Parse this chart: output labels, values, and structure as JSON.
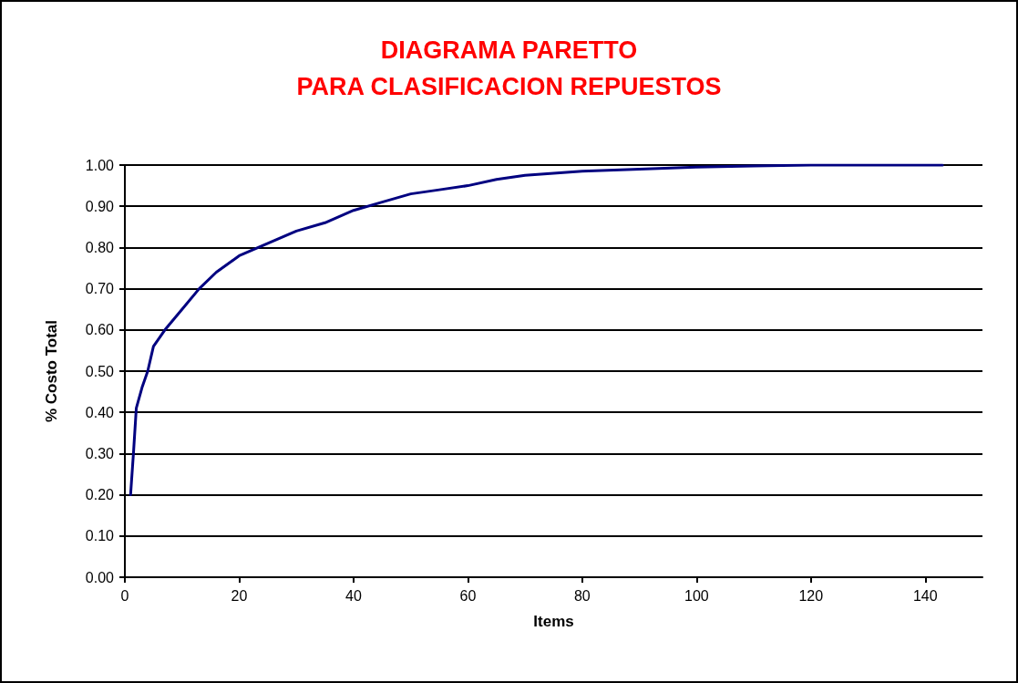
{
  "chart_data": {
    "type": "line",
    "title": "DIAGRAMA PARETTO\nPARA CLASIFICACION REPUESTOS",
    "xlabel": "Items",
    "ylabel": "% Costo Total",
    "x": [
      1,
      1.5,
      2,
      3,
      4,
      5,
      7,
      10,
      13,
      16,
      20,
      25,
      30,
      35,
      40,
      45,
      50,
      55,
      60,
      65,
      70,
      80,
      90,
      100,
      110,
      120,
      143
    ],
    "series": [
      {
        "color": "#000080",
        "values": [
          0.2,
          0.3,
          0.41,
          0.46,
          0.5,
          0.56,
          0.6,
          0.65,
          0.7,
          0.74,
          0.78,
          0.81,
          0.84,
          0.86,
          0.89,
          0.91,
          0.93,
          0.94,
          0.95,
          0.965,
          0.975,
          0.985,
          0.99,
          0.995,
          0.998,
          1.0,
          1.0
        ]
      }
    ],
    "xlim": [
      0,
      150
    ],
    "xticks": [
      0,
      20,
      40,
      60,
      80,
      100,
      120,
      140
    ],
    "ylim": [
      0,
      1
    ],
    "yticks": [
      {
        "value": 0,
        "label": "0.00"
      },
      {
        "value": 0.1,
        "label": "0.10"
      },
      {
        "value": 0.2,
        "label": "0.20"
      },
      {
        "value": 0.3,
        "label": "0.30"
      },
      {
        "value": 0.4,
        "label": "0.40"
      },
      {
        "value": 0.5,
        "label": "0.50"
      },
      {
        "value": 0.6,
        "label": "0.60"
      },
      {
        "value": 0.7,
        "label": "0.70"
      },
      {
        "value": 0.8,
        "label": "0.80"
      },
      {
        "value": 0.9,
        "label": "0.90"
      },
      {
        "value": 1,
        "label": "1.00"
      }
    ],
    "grid": "y",
    "marker": "none",
    "line_style": "solid"
  }
}
